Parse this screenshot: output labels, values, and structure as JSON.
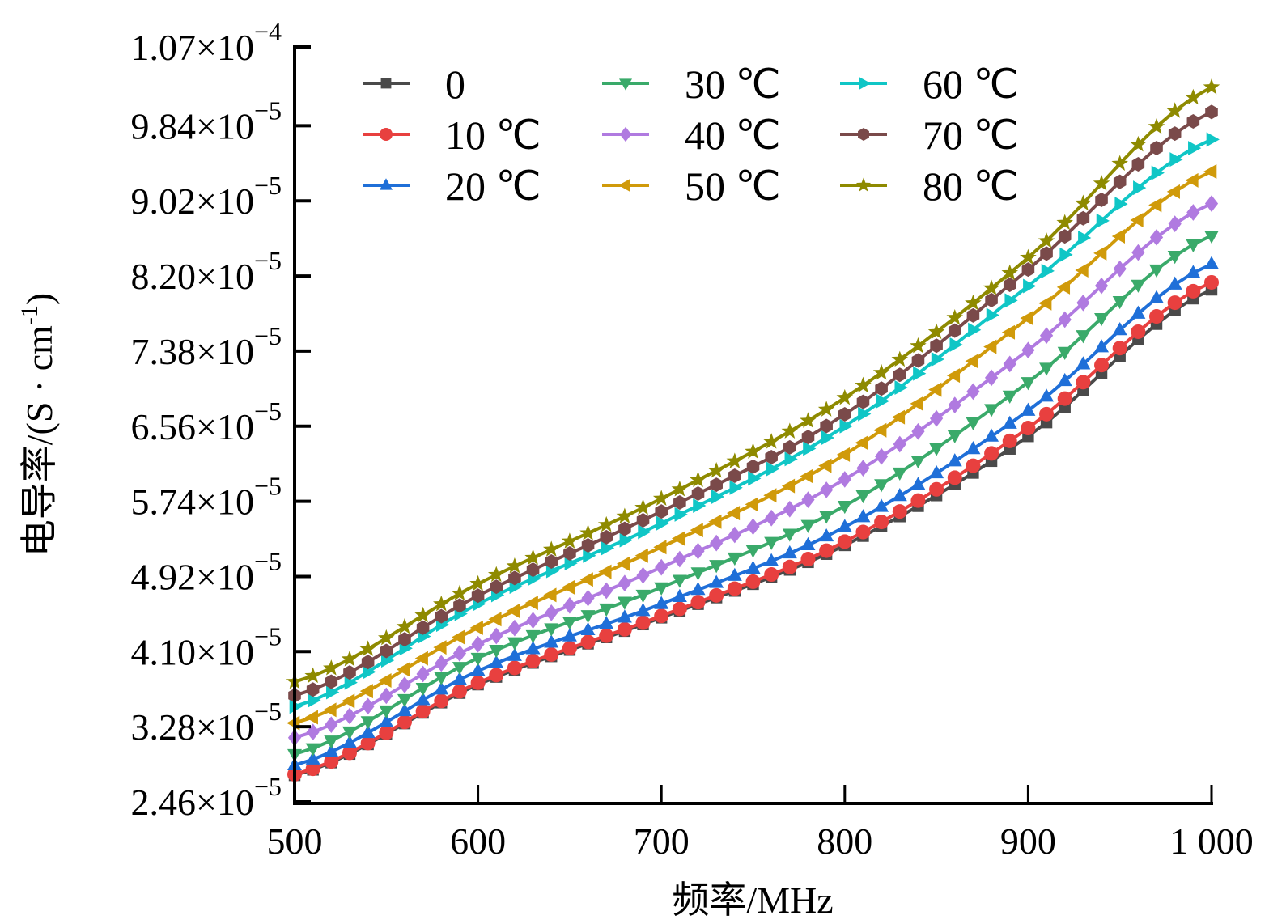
{
  "chart_data": {
    "type": "line",
    "title": "",
    "xlabel": "频率/MHz",
    "ylabel": "电导率/(S · cm",
    "ylabel_sup": "-1",
    "ylabel_close": ")",
    "xlim": [
      500,
      1000
    ],
    "ylim": [
      2.46e-05,
      0.000107
    ],
    "grid": false,
    "legend_position": "top-left",
    "legend_columns": 3,
    "x_ticks": [
      500,
      600,
      700,
      800,
      900,
      1000
    ],
    "x_tick_labels": [
      "500",
      "600",
      "700",
      "800",
      "900",
      "1 000"
    ],
    "y_ticks": [
      2.46e-05,
      3.28e-05,
      4.1e-05,
      4.92e-05,
      5.74e-05,
      6.56e-05,
      7.38e-05,
      8.2e-05,
      9.02e-05,
      9.84e-05,
      0.000107
    ],
    "y_tick_labels": [
      {
        "mantissa": "2.46×10",
        "exp": "−5"
      },
      {
        "mantissa": "3.28×10",
        "exp": "−5"
      },
      {
        "mantissa": "4.10×10",
        "exp": "−5"
      },
      {
        "mantissa": "4.92×10",
        "exp": "−5"
      },
      {
        "mantissa": "5.74×10",
        "exp": "−5"
      },
      {
        "mantissa": "6.56×10",
        "exp": "−5"
      },
      {
        "mantissa": "7.38×10",
        "exp": "−5"
      },
      {
        "mantissa": "8.20×10",
        "exp": "−5"
      },
      {
        "mantissa": "9.02×10",
        "exp": "−5"
      },
      {
        "mantissa": "9.84×10",
        "exp": "−5"
      },
      {
        "mantissa": "1.07×10",
        "exp": "−4"
      }
    ],
    "x": [
      500,
      600,
      700,
      800,
      900,
      1000
    ],
    "marker_step_mhz": 10,
    "series": [
      {
        "name": "0",
        "color": "#4a4a4a",
        "marker": "square",
        "values": [
          2.75e-05,
          3.74e-05,
          4.47e-05,
          5.26e-05,
          6.45e-05,
          8.05e-05
        ]
      },
      {
        "name": "10 ℃",
        "color": "#e8403f",
        "marker": "circle",
        "values": [
          2.76e-05,
          3.76e-05,
          4.49e-05,
          5.3e-05,
          6.54e-05,
          8.13e-05
        ]
      },
      {
        "name": "20 ℃",
        "color": "#1f6fd8",
        "marker": "triangle-up",
        "values": [
          2.86e-05,
          3.89e-05,
          4.62e-05,
          5.46e-05,
          6.73e-05,
          8.33e-05
        ]
      },
      {
        "name": "30 ℃",
        "color": "#3aaa6a",
        "marker": "triangle-down",
        "values": [
          2.98e-05,
          4.03e-05,
          4.8e-05,
          5.69e-05,
          7.04e-05,
          8.64e-05
        ]
      },
      {
        "name": "40 ℃",
        "color": "#b07ae0",
        "marker": "diamond",
        "values": [
          3.16e-05,
          4.18e-05,
          5.02e-05,
          5.98e-05,
          7.39e-05,
          8.99e-05
        ]
      },
      {
        "name": "50 ℃",
        "color": "#d09a0a",
        "marker": "triangle-left",
        "values": [
          3.32e-05,
          4.36e-05,
          5.24e-05,
          6.25e-05,
          7.74e-05,
          9.34e-05
        ]
      },
      {
        "name": "60 ℃",
        "color": "#10c6c6",
        "marker": "triangle-right",
        "values": [
          3.5e-05,
          4.62e-05,
          5.5e-05,
          6.56e-05,
          8.09e-05,
          9.69e-05
        ]
      },
      {
        "name": "70 ℃",
        "color": "#7a4a4a",
        "marker": "hexagon",
        "values": [
          3.62e-05,
          4.71e-05,
          5.63e-05,
          6.69e-05,
          8.27e-05,
          9.99e-05
        ]
      },
      {
        "name": "80 ℃",
        "color": "#8e8a00",
        "marker": "star",
        "values": [
          3.77e-05,
          4.84e-05,
          5.77e-05,
          6.87e-05,
          8.4e-05,
          0.0001026
        ]
      }
    ]
  }
}
